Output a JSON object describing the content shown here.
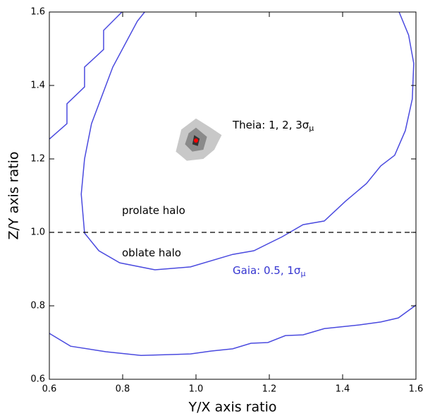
{
  "chart_data": {
    "type": "contour",
    "xlabel": "Y/X axis ratio",
    "ylabel": "Z/Y axis ratio",
    "xlim": [
      0.6,
      1.6
    ],
    "ylim": [
      0.6,
      1.6
    ],
    "xticks": [
      0.6,
      0.8,
      {
        "value": 1,
        "label": "1.0"
      },
      1.2,
      1.4,
      1.6
    ],
    "yticks": [
      0.6,
      0.8,
      {
        "value": 1,
        "label": "1.0"
      },
      1.2,
      1.4,
      1.6
    ],
    "hline": {
      "y": 1,
      "color": "#000000",
      "dashed": true
    },
    "filled": [
      {
        "color": "#c8c8c8",
        "x": [
          0.945,
          0.96,
          1.0,
          1.04,
          1.07,
          1.05,
          1.02,
          0.975
        ],
        "y": [
          1.22,
          1.28,
          1.31,
          1.285,
          1.265,
          1.225,
          1.2,
          1.195
        ]
      },
      {
        "color": "#8a8a8a",
        "x": [
          0.97,
          0.98,
          1.0,
          1.03,
          1.02,
          0.99
        ],
        "y": [
          1.24,
          1.27,
          1.285,
          1.26,
          1.225,
          1.22
        ]
      },
      {
        "color": "#333333",
        "x": [
          0.99,
          0.995,
          1.01,
          1.005
        ],
        "y": [
          1.24,
          1.265,
          1.255,
          1.235
        ]
      }
    ],
    "series": [
      {
        "color": "#4a4adf",
        "x": [
          0.6,
          0.648,
          0.648,
          0.696,
          0.696,
          0.748,
          0.748,
          0.798
        ],
        "y": [
          1.254,
          1.296,
          1.35,
          1.396,
          1.45,
          1.498,
          1.55,
          1.6
        ]
      },
      {
        "color": "#4a4adf",
        "x": [
          0.86,
          0.84,
          0.773,
          0.715,
          0.696,
          0.687,
          0.696,
          0.735,
          0.792,
          0.888,
          0.985,
          1.1,
          1.158,
          1.235,
          1.292,
          1.35,
          1.408,
          1.465,
          1.504,
          1.542,
          1.571,
          1.59,
          1.594,
          1.58,
          1.554
        ],
        "y": [
          1.6,
          1.575,
          1.45,
          1.296,
          1.2,
          1.104,
          0.998,
          0.95,
          0.917,
          0.898,
          0.906,
          0.94,
          0.95,
          0.988,
          1.021,
          1.031,
          1.085,
          1.133,
          1.181,
          1.21,
          1.277,
          1.363,
          1.46,
          1.537,
          1.6
        ]
      },
      {
        "color": "#4a4adf",
        "x": [
          0.6,
          0.658,
          0.754,
          0.85,
          0.985,
          1.042,
          1.1,
          1.15,
          1.196,
          1.244,
          1.292,
          1.35,
          1.446,
          1.504,
          1.552,
          1.6
        ],
        "y": [
          0.725,
          0.69,
          0.675,
          0.665,
          0.669,
          0.677,
          0.683,
          0.698,
          0.7,
          0.719,
          0.721,
          0.738,
          0.748,
          0.756,
          0.767,
          0.802
        ]
      }
    ],
    "points": {
      "color": "#ff0000",
      "x": [
        1.0
      ],
      "y": [
        1.25
      ]
    },
    "annotations": [
      {
        "text": "prolate halo",
        "color": "#000000"
      },
      {
        "text": "oblate halo",
        "color": "#000000"
      },
      {
        "text": "Theia: 1, 2, 3σ",
        "subscript": "μ",
        "color": "#000000"
      },
      {
        "text": "Gaia: 0.5, 1σ",
        "subscript": "μ",
        "color": "#3535d0"
      }
    ]
  }
}
